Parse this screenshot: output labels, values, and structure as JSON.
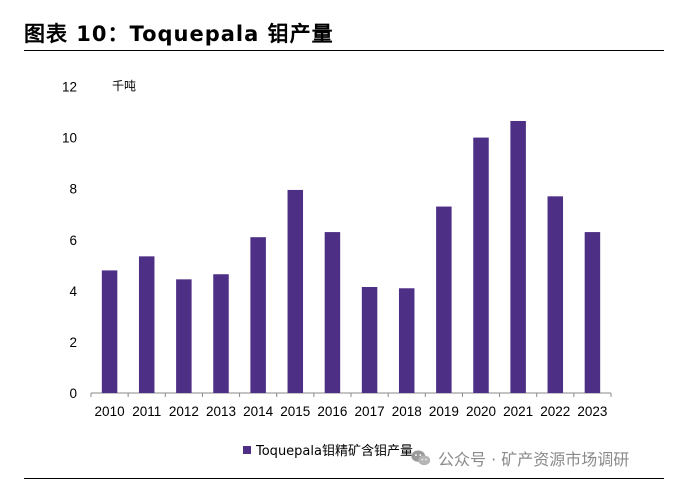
{
  "title": "图表 10：Toquepala 钼产量",
  "chart_data": {
    "type": "bar",
    "title": "图表 10：Toquepala 钼产量",
    "ylabel": "千吨",
    "xlabel": "",
    "ylim": [
      0,
      12
    ],
    "yticks": [
      0,
      2,
      4,
      6,
      8,
      10,
      12
    ],
    "categories": [
      "2010",
      "2011",
      "2012",
      "2013",
      "2014",
      "2015",
      "2016",
      "2017",
      "2018",
      "2019",
      "2020",
      "2021",
      "2022",
      "2023"
    ],
    "series": [
      {
        "name": "Toquepala钼精矿含钼产量",
        "values": [
          4.8,
          5.35,
          4.45,
          4.65,
          6.1,
          7.95,
          6.3,
          4.15,
          4.1,
          7.3,
          10.0,
          10.65,
          7.7,
          6.3
        ]
      }
    ],
    "legend": "bottom-center",
    "grid": false
  },
  "colors": {
    "bar": "#4e2f86",
    "watermark": "#8a8a8a"
  },
  "watermark": {
    "icon": "wechat-icon",
    "text": "公众号 · 矿产资源市场调研"
  }
}
